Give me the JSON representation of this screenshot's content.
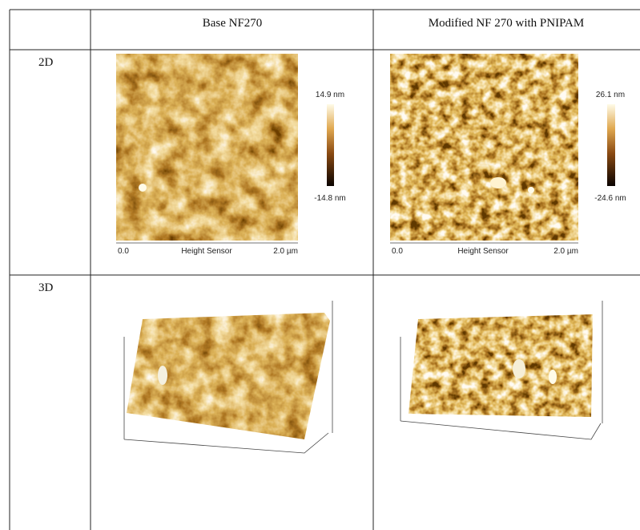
{
  "table": {
    "columns": [
      "Base NF270",
      "Modified NF 270 with PNIPAM"
    ],
    "rows": [
      {
        "label": "2D",
        "images": [
          {
            "scale_max": "14.9 nm",
            "scale_min": "-14.8 nm",
            "axis_start": "0.0",
            "axis_title": "Height Sensor",
            "axis_end": "2.0 µm"
          },
          {
            "scale_max": "26.1 nm",
            "scale_min": "-24.6 nm",
            "axis_start": "0.0",
            "axis_title": "Height Sensor",
            "axis_end": "2.0 µm"
          }
        ]
      },
      {
        "label": "3D"
      }
    ]
  }
}
